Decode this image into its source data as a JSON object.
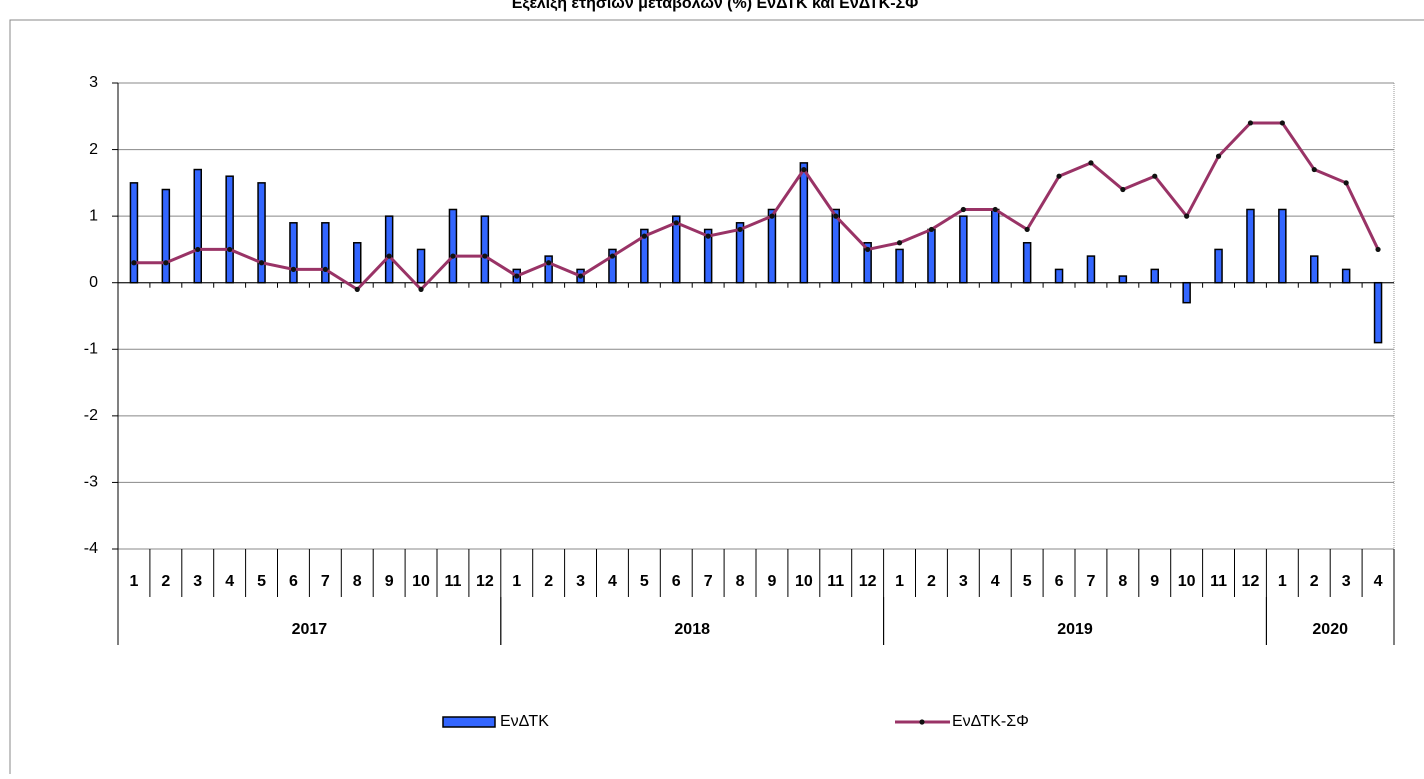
{
  "chart_data": {
    "type": "bar-line",
    "title": "Εξέλιξη ετήσιων μεταβολών (%) ΕνΔΤΚ και ΕνΔΤΚ-ΣΦ",
    "categories": [
      "1",
      "2",
      "3",
      "4",
      "5",
      "6",
      "7",
      "8",
      "9",
      "10",
      "11",
      "12",
      "1",
      "2",
      "3",
      "4",
      "5",
      "6",
      "7",
      "8",
      "9",
      "10",
      "11",
      "12",
      "1",
      "2",
      "3",
      "4",
      "5",
      "6",
      "7",
      "8",
      "9",
      "10",
      "11",
      "12",
      "1",
      "2",
      "3",
      "4"
    ],
    "category_groups": [
      {
        "name": "2017",
        "count": 12
      },
      {
        "name": "2018",
        "count": 12
      },
      {
        "name": "2019",
        "count": 12
      },
      {
        "name": "2020",
        "count": 4
      }
    ],
    "series": [
      {
        "name": "ΕνΔΤΚ",
        "type": "bar",
        "color": "#3366ff",
        "values": [
          1.5,
          1.4,
          1.7,
          1.6,
          1.5,
          0.9,
          0.9,
          0.6,
          1.0,
          0.5,
          1.1,
          1.0,
          0.2,
          0.4,
          0.2,
          0.5,
          0.8,
          1.0,
          0.8,
          0.9,
          1.1,
          1.8,
          1.1,
          0.6,
          0.5,
          0.8,
          1.0,
          1.1,
          0.6,
          0.2,
          0.4,
          0.1,
          0.2,
          -0.3,
          0.5,
          1.1,
          1.1,
          0.4,
          0.2,
          -0.9
        ]
      },
      {
        "name": "ΕνΔΤΚ-ΣΦ",
        "type": "line",
        "color": "#993366",
        "values": [
          0.3,
          0.3,
          0.5,
          0.5,
          0.3,
          0.2,
          0.2,
          -0.1,
          0.4,
          -0.1,
          0.4,
          0.4,
          0.1,
          0.3,
          0.1,
          0.4,
          0.7,
          0.9,
          0.7,
          0.8,
          1.0,
          1.7,
          1.0,
          0.5,
          0.6,
          0.8,
          1.1,
          1.1,
          0.8,
          1.6,
          1.8,
          1.4,
          1.6,
          1.0,
          1.9,
          2.4,
          2.4,
          1.7,
          1.5,
          0.5
        ]
      }
    ],
    "ylim": [
      -4,
      3
    ],
    "yticks": [
      -4,
      -3,
      -2,
      -1,
      0,
      1,
      2,
      3
    ],
    "grid": true,
    "legend": "bottom"
  }
}
